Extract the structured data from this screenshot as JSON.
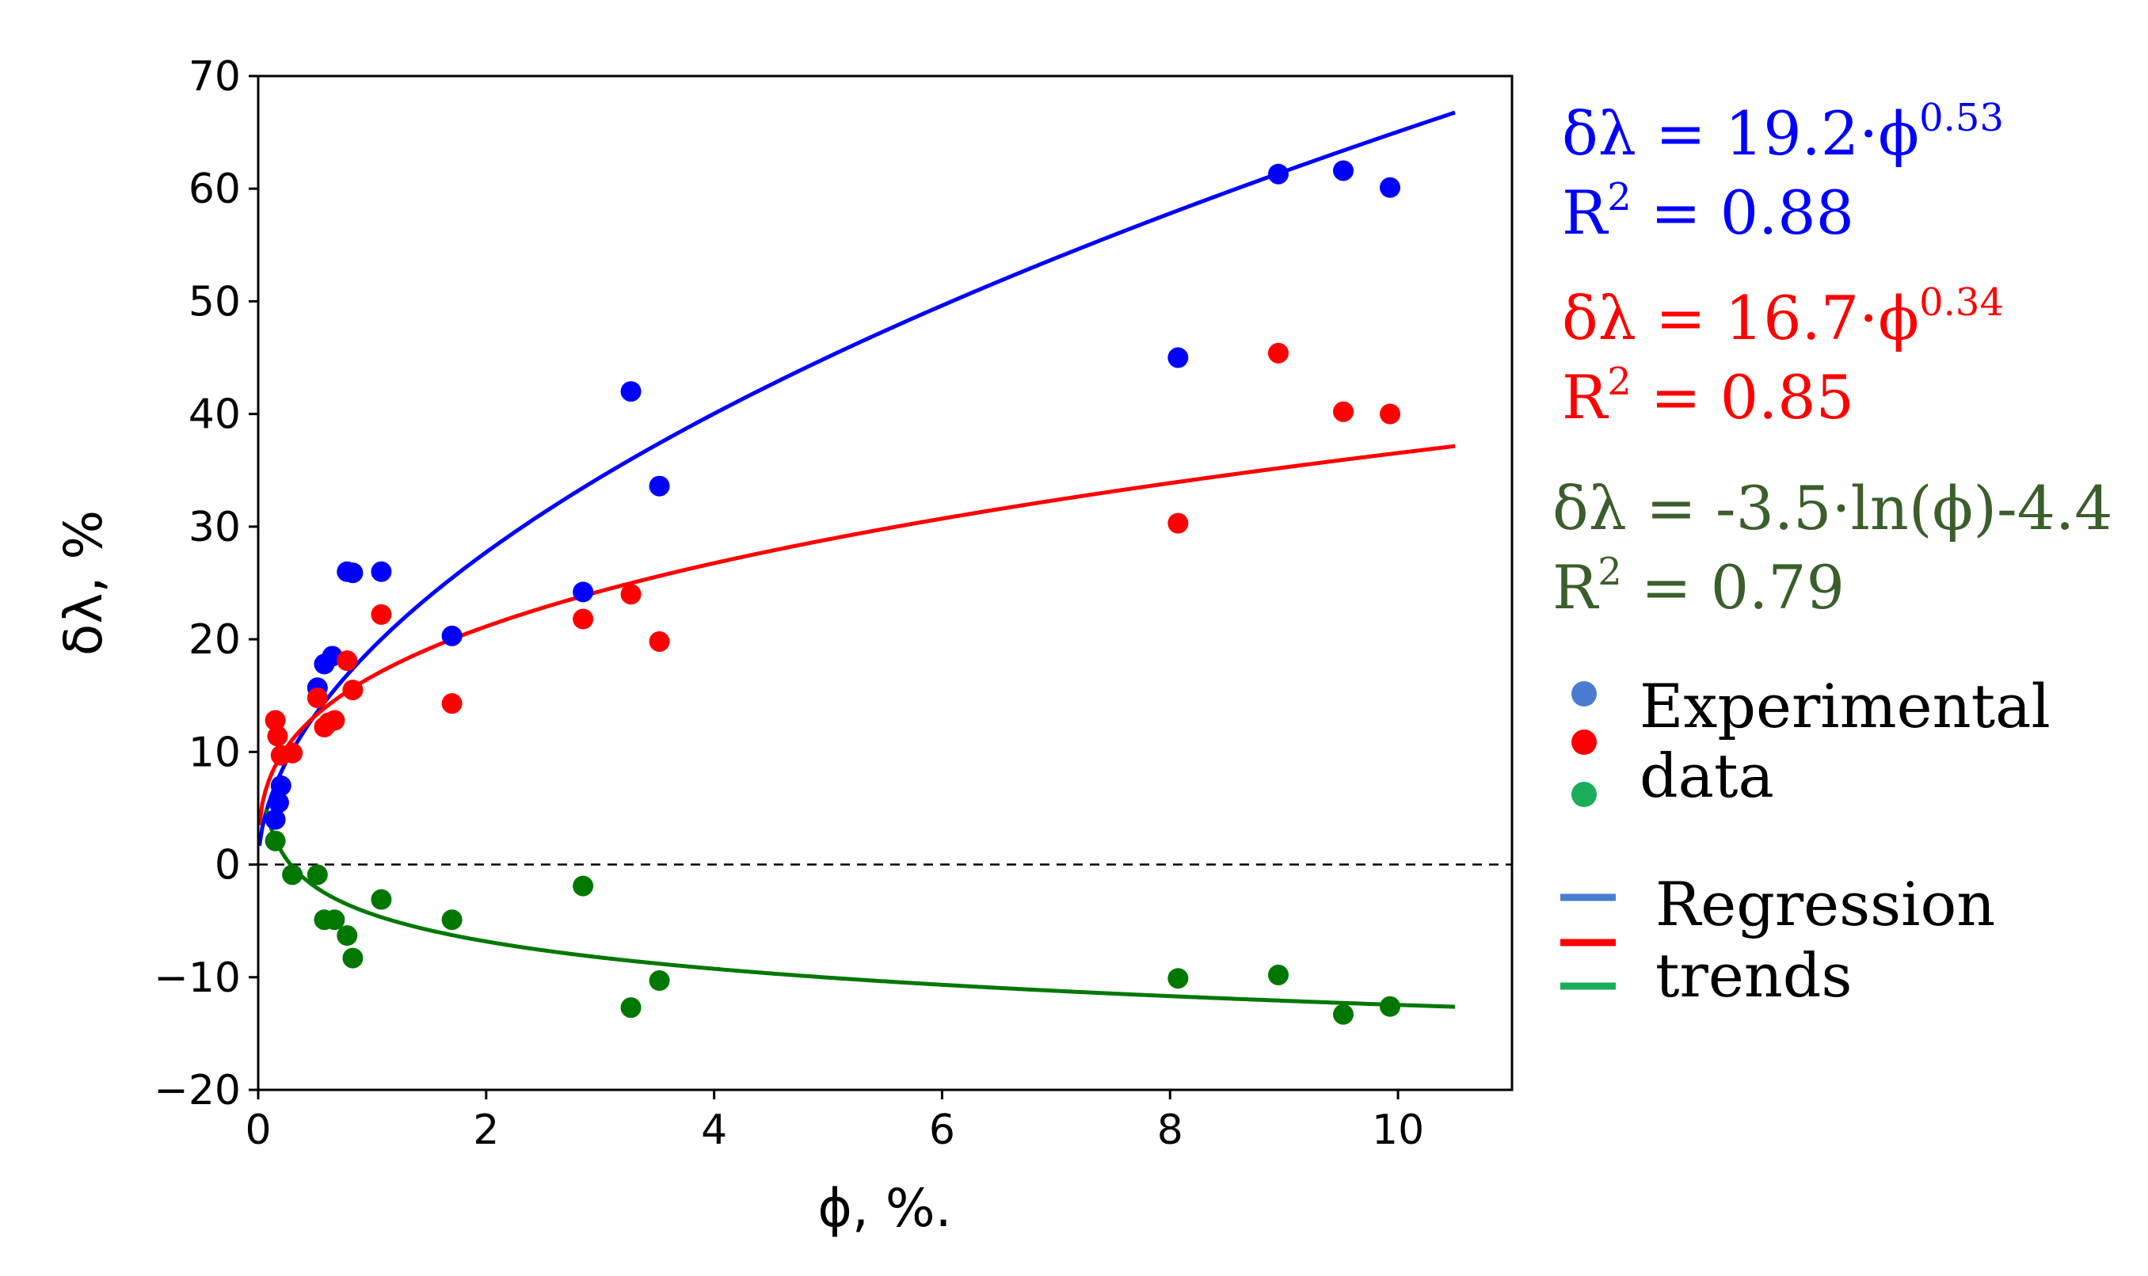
{
  "chart_data": {
    "type": "scatter",
    "xlabel": "ϕ, %.",
    "ylabel": "δλ, %",
    "xlim": [
      0,
      11
    ],
    "ylim": [
      -20,
      70
    ],
    "xticks": [
      0,
      2,
      4,
      6,
      8,
      10
    ],
    "yticks": [
      -20,
      -10,
      0,
      10,
      20,
      30,
      40,
      50,
      60,
      70
    ],
    "xtick_labels": [
      "0",
      "2",
      "4",
      "6",
      "8",
      "10"
    ],
    "ytick_labels": [
      "−20",
      "−10",
      "0",
      "10",
      "20",
      "30",
      "40",
      "50",
      "60",
      "70"
    ],
    "zero_reference_line": 0,
    "series": [
      {
        "name": "blue",
        "color": "#0000ff",
        "x": [
          0.15,
          0.18,
          0.2,
          0.52,
          0.58,
          0.65,
          0.78,
          0.83,
          1.08,
          1.7,
          2.85,
          3.27,
          3.52,
          8.07,
          8.95,
          9.52,
          9.93
        ],
        "y": [
          4.0,
          5.5,
          7.0,
          15.7,
          17.8,
          18.5,
          26.0,
          25.9,
          26.0,
          20.3,
          24.2,
          42.0,
          33.6,
          45.0,
          61.3,
          61.6,
          60.1
        ],
        "fit": {
          "kind": "power",
          "a": 19.2,
          "b": 0.53,
          "x_start": 0.01,
          "x_end": 10.5
        },
        "equation": {
          "prefix": "δλ = 19.2·ϕ",
          "exponent": "0.53"
        },
        "r2_text": {
          "prefix": "R",
          "sup": "2",
          "suffix": " = 0.88"
        }
      },
      {
        "name": "red",
        "color": "#ff0000",
        "x": [
          0.15,
          0.17,
          0.2,
          0.3,
          0.52,
          0.58,
          0.62,
          0.67,
          0.78,
          0.83,
          1.08,
          1.7,
          2.85,
          3.27,
          3.52,
          8.07,
          8.95,
          9.52,
          9.93
        ],
        "y": [
          12.8,
          11.4,
          9.7,
          9.9,
          14.8,
          12.2,
          12.6,
          12.8,
          18.1,
          15.5,
          22.2,
          14.3,
          21.8,
          24.0,
          19.8,
          30.3,
          45.4,
          40.2,
          40.0
        ],
        "fit": {
          "kind": "power",
          "a": 16.7,
          "b": 0.34,
          "x_start": 0.01,
          "x_end": 10.5
        },
        "equation": {
          "prefix": "δλ = 16.7·ϕ",
          "exponent": "0.34"
        },
        "r2_text": {
          "prefix": "R",
          "sup": "2",
          "suffix": " = 0.85"
        }
      },
      {
        "name": "green",
        "color": "#007800",
        "x": [
          0.15,
          0.3,
          0.52,
          0.58,
          0.67,
          0.78,
          0.83,
          1.08,
          1.7,
          2.85,
          3.27,
          3.52,
          8.07,
          8.95,
          9.52,
          9.93
        ],
        "y": [
          2.1,
          -0.9,
          -0.9,
          -4.9,
          -4.9,
          -6.3,
          -8.3,
          -3.1,
          -4.9,
          -1.9,
          -12.7,
          -10.3,
          -10.1,
          -9.8,
          -13.3,
          -12.6
        ],
        "fit": {
          "kind": "log",
          "a": -3.5,
          "b": -4.4,
          "x_start": 0.07,
          "x_end": 10.5
        },
        "equation": {
          "prefix": "δλ = -3.5·ln(ϕ)-4.4",
          "exponent": ""
        },
        "r2_text": {
          "prefix": "R",
          "sup": "2",
          "suffix": " = 0.79"
        }
      }
    ],
    "legend": {
      "markers_label": [
        "Experimental",
        "data"
      ],
      "marker_colors": [
        "#4a7dd1",
        "#ff0000",
        "#1aad5a"
      ],
      "lines_label": [
        "Regression",
        "trends"
      ],
      "line_colors": [
        "#4a7dd1",
        "#ff0000",
        "#1aad5a"
      ]
    }
  }
}
